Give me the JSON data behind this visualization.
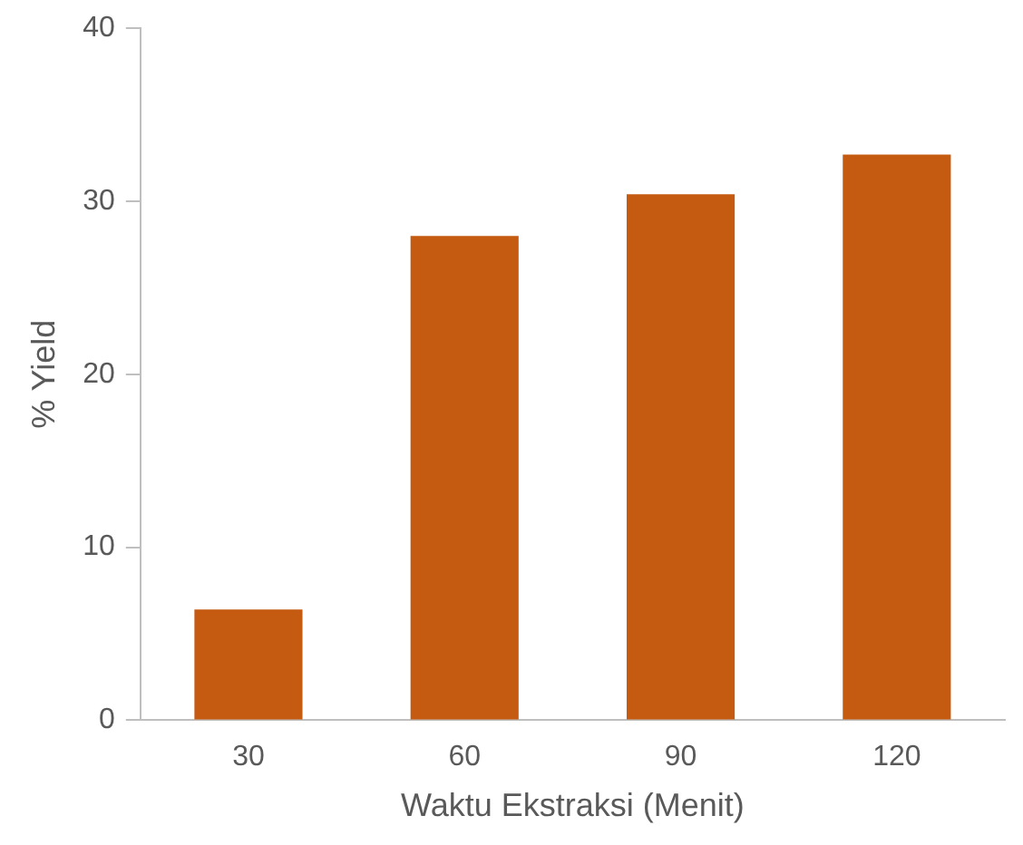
{
  "chart_data": {
    "type": "bar",
    "xlabel": "Waktu Ekstraksi (Menit)",
    "ylabel": "% Yield",
    "categories": [
      "30",
      "60",
      "90",
      "120"
    ],
    "values": [
      6.4,
      28,
      30.4,
      32.7
    ],
    "color": "#c55a11",
    "ylim": [
      0,
      40
    ],
    "yticks": [
      0,
      10,
      20,
      30,
      40
    ],
    "grid": false,
    "legend": false
  }
}
